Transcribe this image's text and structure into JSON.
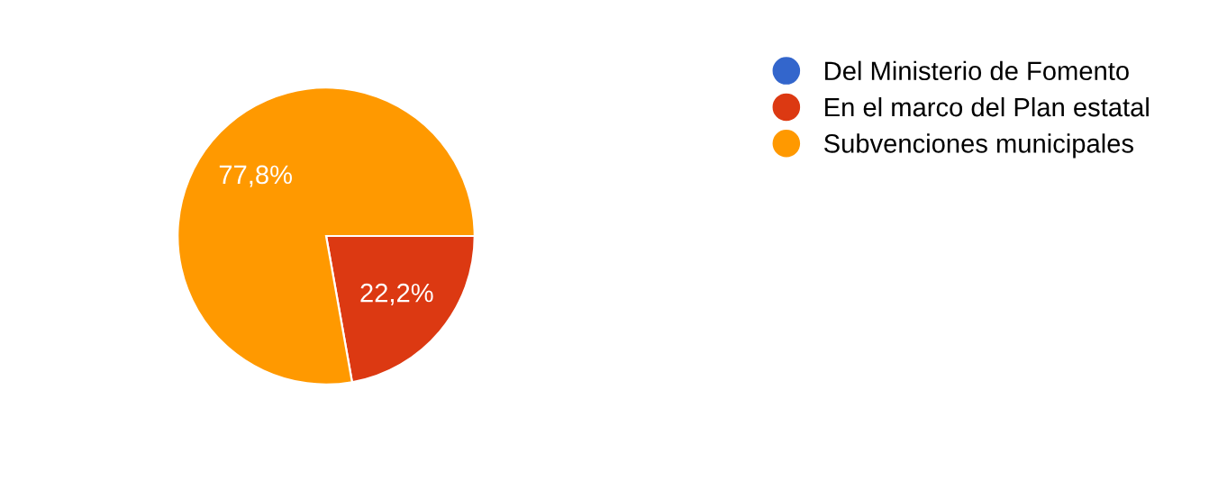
{
  "chart_data": {
    "type": "pie",
    "categories": [
      "Del Ministerio de Fomento",
      "En el marco del Plan estatal",
      "Subvenciones municipales"
    ],
    "values": [
      0,
      22.2,
      77.8
    ],
    "value_labels": [
      null,
      "22,2%",
      "77,8%"
    ],
    "colors": [
      "#3366cc",
      "#dc3912",
      "#ff9900"
    ],
    "legend": "right"
  }
}
